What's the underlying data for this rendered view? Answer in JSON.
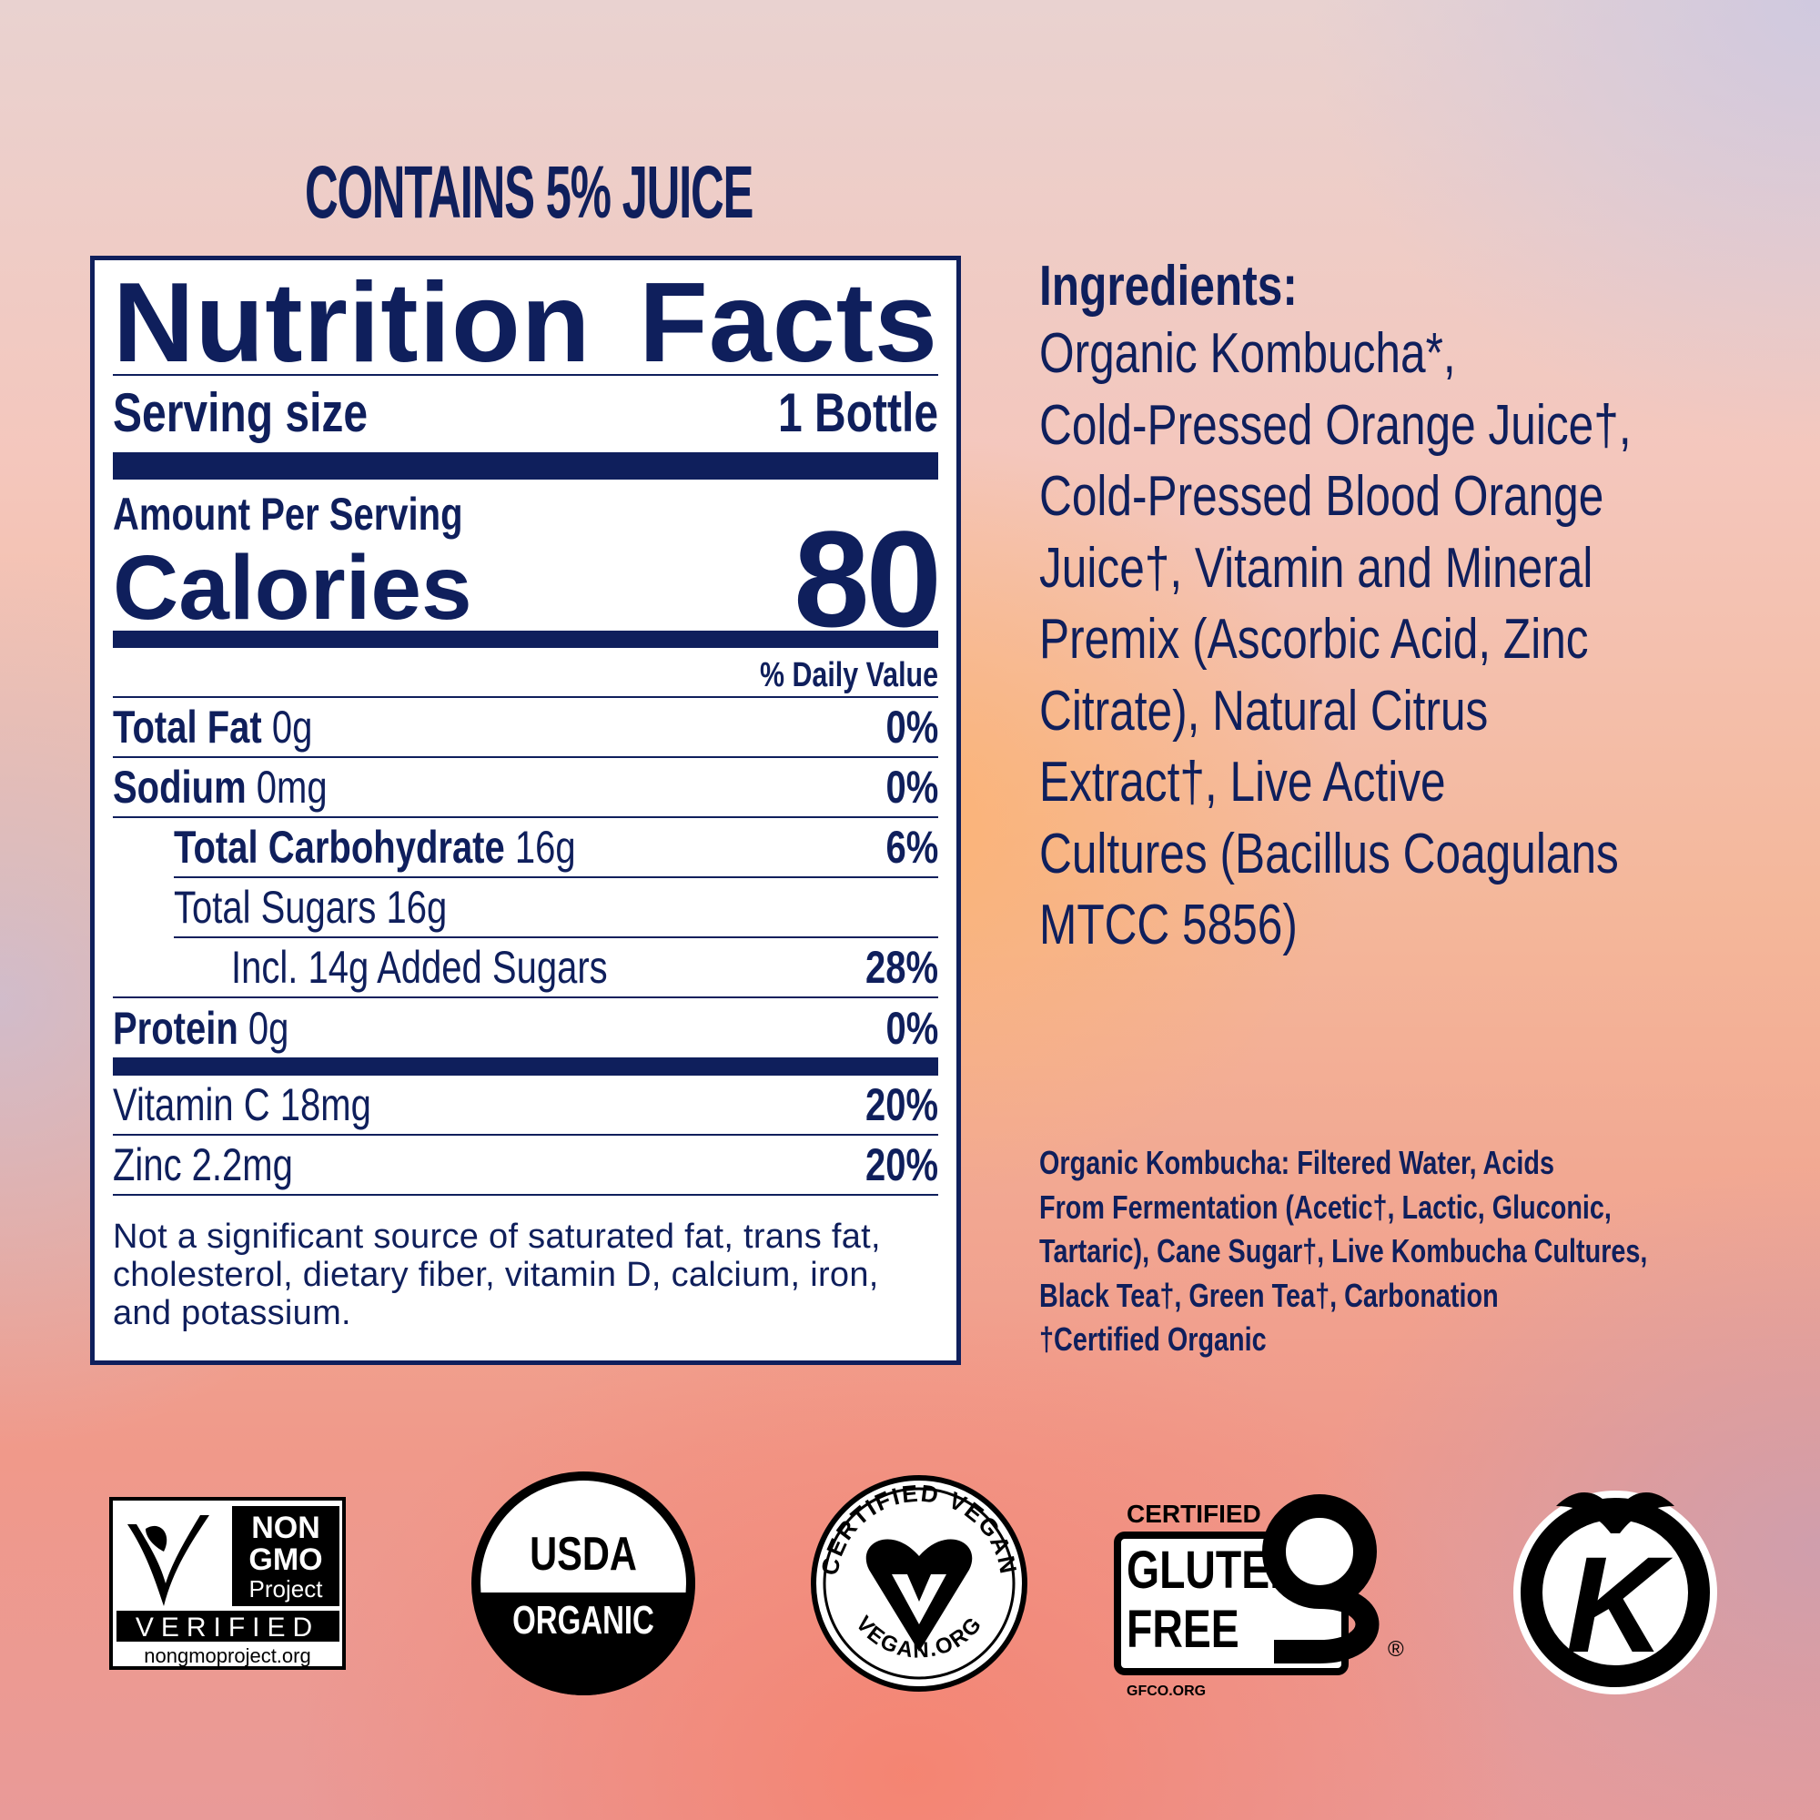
{
  "banner": "CONTAINS 5% JUICE",
  "nutrition": {
    "title_words": [
      "Nutrition",
      "Facts"
    ],
    "serving_label": "Serving size",
    "serving_value": "1 Bottle",
    "amount_label": "Amount Per Serving",
    "calories_label": "Calories",
    "calories_value": "80",
    "dv_header": "% Daily Value",
    "rows": [
      {
        "name": "Total Fat",
        "amount": "0g",
        "dv": "0%"
      },
      {
        "name": "Sodium",
        "amount": "0mg",
        "dv": "0%"
      },
      {
        "name": "Total Carbohydrate",
        "amount": "16g",
        "dv": "6%"
      },
      {
        "name": "",
        "amount": "Total Sugars 16g",
        "dv": ""
      },
      {
        "name": "",
        "amount": "Incl. 14g Added Sugars",
        "dv": "28%"
      },
      {
        "name": "Protein",
        "amount": "0g",
        "dv": "0%"
      }
    ],
    "vitamins": [
      {
        "amount": "Vitamin C 18mg",
        "dv": "20%"
      },
      {
        "amount": "Zinc 2.2mg",
        "dv": "20%"
      }
    ],
    "footnote_lines": [
      "Not a significant source of saturated fat, trans fat,",
      "cholesterol, dietary fiber, vitamin D, calcium, iron,",
      "and potassium."
    ]
  },
  "ingredients": {
    "heading": "Ingredients:",
    "lines": [
      "Organic Kombucha*,",
      "Cold-Pressed Orange Juice†,",
      "Cold-Pressed Blood Orange",
      "Juice†, Vitamin and Mineral",
      "Premix (Ascorbic Acid, Zinc",
      "Citrate), Natural Citrus",
      "Extract†, Live Active",
      "Cultures (Bacillus Coagulans",
      "MTCC 5856)"
    ]
  },
  "kombucha_note": {
    "lines": [
      "Organic Kombucha: Filtered Water, Acids",
      "From Fermentation (Acetic†, Lactic, Gluconic,",
      "Tartaric), Cane Sugar†, Live Kombucha Cultures,",
      "Black Tea†, Green Tea†, Carbonation",
      "†Certified Organic"
    ]
  },
  "certifications": {
    "non_gmo": {
      "lines": [
        "NON",
        "GMO",
        "Project"
      ],
      "verified": "VERIFIED",
      "url": "nongmoproject.org"
    },
    "usda": {
      "top": "USDA",
      "bottom": "ORGANIC"
    },
    "vegan": {
      "top": "CERTIFIED VEGAN",
      "bottom": "VEGAN.ORG"
    },
    "gluten_free": {
      "certified": "CERTIFIED",
      "line1": "GLUTEN",
      "line2": "FREE",
      "url": "GFCO.ORG"
    },
    "kosher": {
      "letter": "K"
    }
  },
  "colors": {
    "navy": "#0f1f5c",
    "white": "#ffffff",
    "black": "#000000"
  }
}
